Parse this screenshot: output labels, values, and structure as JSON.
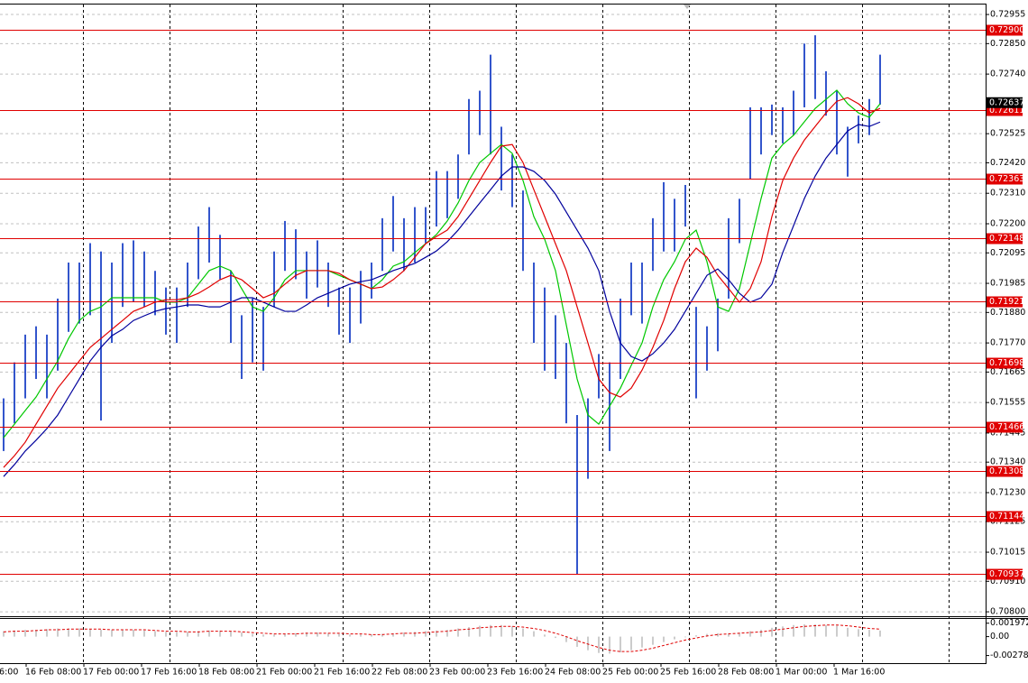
{
  "chart_data": [
    {
      "type": "ohlc",
      "color": "#3355cc",
      "high": [
        0.7157,
        0.717,
        0.718,
        0.7183,
        0.718,
        0.7193,
        0.7206,
        0.7206,
        0.7213,
        0.721,
        0.7206,
        0.7213,
        0.7214,
        0.721,
        0.7203,
        0.7197,
        0.7197,
        0.7206,
        0.7219,
        0.7226,
        0.7216,
        0.7203,
        0.7187,
        0.7193,
        0.719,
        0.721,
        0.7221,
        0.7218,
        0.721,
        0.7214,
        0.7206,
        0.7197,
        0.7197,
        0.7203,
        0.7206,
        0.7222,
        0.723,
        0.7222,
        0.7226,
        0.7226,
        0.7239,
        0.7239,
        0.7245,
        0.7265,
        0.7268,
        0.7281,
        0.7255,
        0.7245,
        0.7232,
        0.7206,
        0.7197,
        0.7187,
        0.7177,
        0.7151,
        0.7157,
        0.7173,
        0.717,
        0.7193,
        0.7206,
        0.7206,
        0.7222,
        0.7235,
        0.7229,
        0.7234,
        0.719,
        0.7183,
        0.7193,
        0.7222,
        0.7229,
        0.7262,
        0.7262,
        0.7263,
        0.7262,
        0.7268,
        0.7285,
        0.7288,
        0.7275,
        0.7268,
        0.7255,
        0.7259,
        0.7265,
        0.7281
      ],
      "low": [
        0.7138,
        0.7148,
        0.7157,
        0.7164,
        0.7157,
        0.7167,
        0.7181,
        0.7184,
        0.7187,
        0.7149,
        0.7177,
        0.719,
        0.7192,
        0.719,
        0.7187,
        0.718,
        0.7177,
        0.719,
        0.72,
        0.7206,
        0.72,
        0.7177,
        0.7164,
        0.717,
        0.7167,
        0.719,
        0.7203,
        0.72,
        0.7193,
        0.7197,
        0.719,
        0.718,
        0.7177,
        0.7184,
        0.7193,
        0.7203,
        0.721,
        0.7203,
        0.7206,
        0.7213,
        0.7219,
        0.7222,
        0.7229,
        0.7245,
        0.7252,
        0.7245,
        0.7232,
        0.7226,
        0.7203,
        0.7177,
        0.7167,
        0.7164,
        0.7148,
        0.70937,
        0.7128,
        0.7157,
        0.7138,
        0.7164,
        0.7187,
        0.7184,
        0.7203,
        0.721,
        0.721,
        0.7219,
        0.7157,
        0.7167,
        0.7174,
        0.7193,
        0.7213,
        0.7236,
        0.7245,
        0.7252,
        0.7249,
        0.7252,
        0.7262,
        0.7265,
        0.7259,
        0.7245,
        0.7237,
        0.7249,
        0.7252,
        0.7263
      ],
      "lines": [
        {
          "color": "#00c800",
          "values": [
            0.71428,
            0.71477,
            0.71526,
            0.71575,
            0.7164,
            0.71705,
            0.71786,
            0.71851,
            0.71884,
            0.719,
            0.71933,
            0.71933,
            0.71933,
            0.71933,
            0.71933,
            0.71917,
            0.71917,
            0.71933,
            0.71982,
            0.72031,
            0.72047,
            0.72031,
            0.71966,
            0.719,
            0.71884,
            0.71933,
            0.71998,
            0.72031,
            0.72031,
            0.72031,
            0.72031,
            0.72014,
            0.71998,
            0.71982,
            0.71966,
            0.71998,
            0.72047,
            0.72063,
            0.72096,
            0.72128,
            0.72161,
            0.7221,
            0.72275,
            0.72356,
            0.72421,
            0.72454,
            0.72486,
            0.72454,
            0.72356,
            0.72226,
            0.72144,
            0.72031,
            0.71835,
            0.7164,
            0.7151,
            0.71477,
            0.71542,
            0.71607,
            0.71689,
            0.7177,
            0.719,
            0.71998,
            0.72063,
            0.72144,
            0.72177,
            0.72063,
            0.719,
            0.71884,
            0.71966,
            0.72128,
            0.72291,
            0.72437,
            0.72486,
            0.72519,
            0.72568,
            0.72616,
            0.72649,
            0.72682,
            0.72633,
            0.726,
            0.72584,
            0.72633
          ]
        },
        {
          "color": "#e00000",
          "values": [
            0.71321,
            0.71363,
            0.71412,
            0.71477,
            0.71542,
            0.71607,
            0.71656,
            0.71705,
            0.71754,
            0.71786,
            0.71819,
            0.71851,
            0.71884,
            0.719,
            0.71917,
            0.71926,
            0.71926,
            0.71933,
            0.71949,
            0.71972,
            0.71998,
            0.72014,
            0.71998,
            0.71966,
            0.71933,
            0.71949,
            0.71982,
            0.72014,
            0.72031,
            0.72031,
            0.72031,
            0.72021,
            0.71998,
            0.71982,
            0.71966,
            0.71972,
            0.71998,
            0.72031,
            0.72079,
            0.72128,
            0.72154,
            0.72177,
            0.72226,
            0.72291,
            0.72356,
            0.72421,
            0.7248,
            0.72486,
            0.72421,
            0.72323,
            0.72226,
            0.72128,
            0.72031,
            0.719,
            0.7177,
            0.7164,
            0.71591,
            0.71575,
            0.71607,
            0.71672,
            0.71754,
            0.71851,
            0.71966,
            0.72063,
            0.72112,
            0.72079,
            0.72014,
            0.71966,
            0.71917,
            0.71966,
            0.72063,
            0.72226,
            0.72356,
            0.72437,
            0.72502,
            0.72551,
            0.726,
            0.72642,
            0.72655,
            0.72633,
            0.726,
            0.72616
          ]
        },
        {
          "color": "#00009c",
          "values": [
            0.71288,
            0.71331,
            0.7138,
            0.71419,
            0.71461,
            0.7151,
            0.71575,
            0.7164,
            0.71705,
            0.71754,
            0.71796,
            0.71819,
            0.71851,
            0.71868,
            0.71884,
            0.71894,
            0.719,
            0.71907,
            0.71907,
            0.719,
            0.719,
            0.71917,
            0.71933,
            0.71933,
            0.71917,
            0.719,
            0.71884,
            0.71884,
            0.71907,
            0.71933,
            0.71949,
            0.71966,
            0.71982,
            0.71991,
            0.71998,
            0.72014,
            0.72031,
            0.72044,
            0.72057,
            0.72079,
            0.72102,
            0.72135,
            0.72177,
            0.72226,
            0.72275,
            0.72323,
            0.72372,
            0.72405,
            0.72405,
            0.72389,
            0.72356,
            0.72307,
            0.72242,
            0.72177,
            0.72112,
            0.72031,
            0.71884,
            0.7177,
            0.71721,
            0.71705,
            0.71731,
            0.7177,
            0.71819,
            0.71884,
            0.71949,
            0.72014,
            0.72037,
            0.71998,
            0.71949,
            0.71917,
            0.71933,
            0.71982,
            0.72096,
            0.72193,
            0.72291,
            0.72372,
            0.72437,
            0.72486,
            0.72535,
            0.72558,
            0.72551,
            0.72567
          ]
        }
      ],
      "levels": [
        {
          "value": 0.729,
          "label": "0.72900"
        },
        0.72611,
        0.72363,
        0.72148,
        0.71921,
        0.71698,
        0.71466,
        0.71308,
        0.71144,
        0.70937
      ],
      "level_color": "#e00000",
      "current_price": 0.72637,
      "ylim": [
        0.70784,
        0.72991
      ],
      "yticks": [
        0.72955,
        {
          "value": 0.7285,
          "label": "0.72850"
        },
        {
          "value": 0.7274,
          "label": "0.72740"
        },
        0.72525,
        {
          "value": 0.7242,
          "label": "0.72420"
        },
        {
          "value": 0.7231,
          "label": "0.72310"
        },
        {
          "value": 0.722,
          "label": "0.72200"
        },
        0.72095,
        0.71985,
        {
          "value": 0.7188,
          "label": "0.71880"
        },
        {
          "value": 0.7177,
          "label": "0.71770"
        },
        0.71665,
        0.71555,
        0.71445,
        {
          "value": 0.7134,
          "label": "0.71340"
        },
        {
          "value": 0.7123,
          "label": "0.71230"
        },
        0.71125,
        0.71015,
        {
          "value": 0.7091,
          "label": "0.70910"
        },
        {
          "value": 0.708,
          "label": "0.70800"
        }
      ],
      "grid": true,
      "x_labels": [
        "16:00",
        "16 Feb 08:00",
        "17 Feb 00:00",
        "17 Feb 16:00",
        "18 Feb 08:00",
        "21 Feb 00:00",
        "21 Feb 16:00",
        "22 Feb 08:00",
        "23 Feb 00:00",
        "23 Feb 16:00",
        "24 Feb 08:00",
        "25 Feb 00:00",
        "25 Feb 16:00",
        "28 Feb 08:00",
        "1 Mar 00:00",
        "1 Mar 16:00"
      ]
    },
    {
      "type": "bar",
      "color": "#9a9a9a",
      "values": [
        0.0008,
        0.0009,
        0.001,
        0.001,
        0.0011,
        0.0012,
        0.0012,
        0.0012,
        0.0011,
        0.001,
        0.001,
        0.001,
        0.001,
        0.0009,
        0.0008,
        0.0007,
        0.0007,
        0.0007,
        0.0008,
        0.0009,
        0.0009,
        0.0008,
        0.0006,
        0.0004,
        0.0003,
        0.0003,
        0.0004,
        0.0005,
        0.0006,
        0.0006,
        0.0005,
        0.0004,
        0.0003,
        0.0003,
        0.0003,
        0.0004,
        0.0005,
        0.0006,
        0.0007,
        0.0008,
        0.0009,
        0.001,
        0.0012,
        0.0014,
        0.0016,
        0.0017,
        0.0017,
        0.0015,
        0.0012,
        0.0008,
        0.0003,
        -0.0002,
        -0.0008,
        -0.0015,
        -0.002,
        -0.0024,
        -0.0025,
        -0.0023,
        -0.002,
        -0.0016,
        -0.0012,
        -0.0008,
        -0.0004,
        -0.0001,
        0.0002,
        0.0004,
        0.0005,
        0.0005,
        0.0006,
        0.0008,
        0.001,
        0.0013,
        0.0015,
        0.0017,
        0.0018,
        0.0018,
        0.0017,
        0.0016,
        0.0013,
        0.0011,
        0.001,
        0.0009
      ],
      "signal": {
        "color": "#e00000",
        "values": [
          0.0007,
          0.0008,
          0.0008,
          0.0009,
          0.001,
          0.001,
          0.0011,
          0.0011,
          0.0011,
          0.0011,
          0.001,
          0.001,
          0.001,
          0.001,
          0.0009,
          0.0008,
          0.0008,
          0.0007,
          0.0007,
          0.0008,
          0.0008,
          0.0008,
          0.0007,
          0.0006,
          0.0005,
          0.0004,
          0.0004,
          0.0004,
          0.0005,
          0.0005,
          0.0005,
          0.0005,
          0.0004,
          0.0004,
          0.0003,
          0.0003,
          0.0004,
          0.0005,
          0.0005,
          0.0006,
          0.0007,
          0.0008,
          0.001,
          0.0011,
          0.0013,
          0.0014,
          0.0015,
          0.0015,
          0.0014,
          0.0012,
          0.0009,
          0.0005,
          0.0,
          -0.0006,
          -0.0011,
          -0.0016,
          -0.002,
          -0.0022,
          -0.0022,
          -0.002,
          -0.0017,
          -0.0013,
          -0.0009,
          -0.0005,
          -0.0002,
          0.0001,
          0.0003,
          0.0004,
          0.0005,
          0.0006,
          0.0007,
          0.0009,
          0.0011,
          0.0013,
          0.0015,
          0.0016,
          0.0017,
          0.0017,
          0.0016,
          0.0014,
          0.0012,
          0.0011
        ]
      },
      "ylim": [
        -0.0039,
        0.0026
      ],
      "yticks": [
        0.001972,
        {
          "value": 0,
          "label": "0.00"
        },
        -0.002783
      ],
      "grid": false
    }
  ]
}
